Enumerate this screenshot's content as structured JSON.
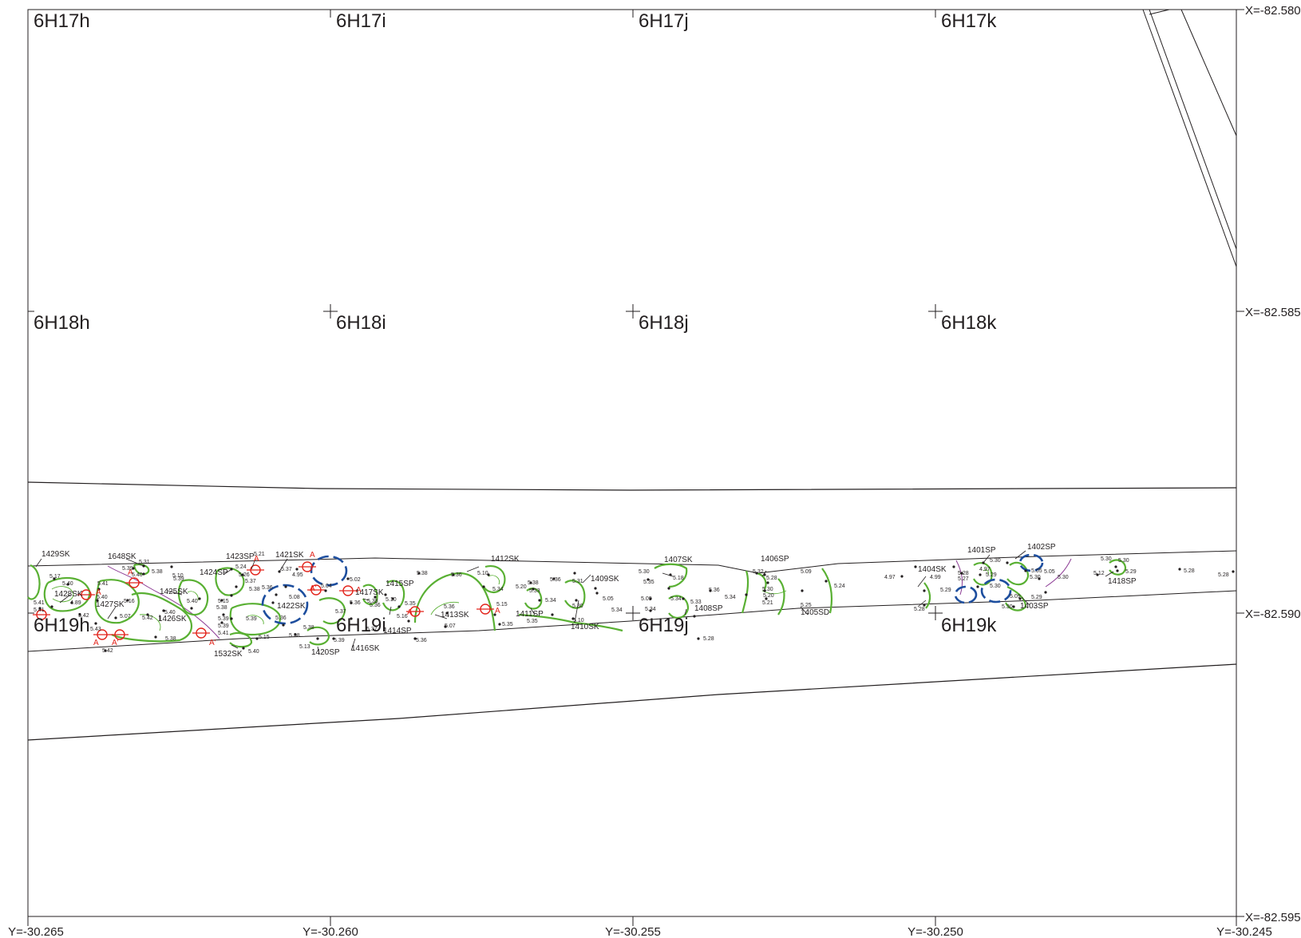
{
  "colors": {
    "outline": "#231f20",
    "contour": "#59b033",
    "pit": "#1d4e9e",
    "section": "#e2231a",
    "boundary": "#8e3e96"
  },
  "grid_labels": [
    "6H17h",
    "6H17i",
    "6H17j",
    "6H17k",
    "6H18h",
    "6H18i",
    "6H18j",
    "6H18k",
    "6H19h",
    "6H19i",
    "6H19j",
    "6H19k"
  ],
  "y_labels": [
    "Y=-30.265",
    "Y=-30.260",
    "Y=-30.255",
    "Y=-30.250",
    "Y=-30.245"
  ],
  "x_labels": [
    "X=-82.580",
    "X=-82.585",
    "X=-82.590",
    "X=-82.595"
  ],
  "features": [
    "1429SK",
    "1648SK",
    "1428SK",
    "1427SK",
    "1425SK",
    "1426SK",
    "1424SP",
    "1423SP",
    "1421SK",
    "1422SK",
    "1532SK",
    "1420SP",
    "1416SK",
    "1417SK",
    "1415SP",
    "1414SP",
    "1413SK",
    "1412SK",
    "1411SP",
    "1410SK",
    "1409SK",
    "1407SK",
    "1408SP",
    "1406SP",
    "1405SD",
    "1404SK",
    "1401SP",
    "1402SP",
    "1403SP",
    "1418SP"
  ],
  "elevations": [
    "5.17",
    "5.40",
    "5.41",
    "5.40",
    "4.89",
    "5.41",
    "5.42",
    "5.41",
    "5.43",
    "5.42",
    "5.31",
    "5.39",
    "5.40",
    "5.38",
    "5.16",
    "5.07",
    "5.42",
    "5.40",
    "5.39",
    "5.38",
    "5.40",
    "5.10",
    "5.15",
    "5.38",
    "5.26",
    "5.24",
    "5.37",
    "5.38",
    "5.39",
    "5.39",
    "5.41",
    "5.39",
    "5.15",
    "5.40",
    "5.21",
    "5.37",
    "4.95",
    "5.36",
    "5.08",
    "5.36",
    "5.38",
    "5.38",
    "5.13",
    "5.39",
    "5.04",
    "5.02",
    "5.36",
    "5.37",
    "5.37",
    "5.38",
    "5.36",
    "5.10",
    "5.35",
    "5.16",
    "5.36",
    "5.38",
    "5.36",
    "5.36",
    "5.07",
    "5.10",
    "5.34",
    "5.15",
    "5.35",
    "5.38",
    "5.33",
    "5.20",
    "5.34",
    "5.35",
    "5.36",
    "5.31",
    "5.30",
    "5.10",
    "5.05",
    "5.34",
    "5.30",
    "5.35",
    "5.18",
    "5.34",
    "5.33",
    "5.09",
    "5.34",
    "5.36",
    "5.34",
    "5.32",
    "5.28",
    "5.30",
    "5.20",
    "5.21",
    "5.09",
    "5.25",
    "5.24",
    "4.97",
    "4.99",
    "5.29",
    "5.28",
    "5.28",
    "5.27",
    "4.97",
    "5.29",
    "5.30",
    "5.30",
    "5.05",
    "5.30",
    "5.30",
    "5.09",
    "5.29",
    "5.05",
    "5.30",
    "5.30",
    "5.30",
    "5.29",
    "5.12",
    "5.28",
    "5.28",
    "5.28",
    "5.29"
  ],
  "section_marks": [
    "A",
    "A'",
    "A",
    "A",
    "A'",
    "A",
    "A",
    "A'",
    "A",
    "A",
    "A"
  ]
}
